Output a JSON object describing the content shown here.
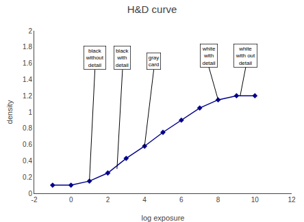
{
  "chart_data": {
    "type": "line",
    "title": "H&D curve",
    "xlabel": "log exposure",
    "ylabel": "density",
    "x": [
      -1,
      0,
      1,
      2,
      3,
      4,
      5,
      6,
      7,
      8,
      9,
      10
    ],
    "values": [
      0.1,
      0.1,
      0.15,
      0.25,
      0.43,
      0.58,
      0.75,
      0.9,
      1.05,
      1.15,
      1.2,
      1.2
    ],
    "color": "#00008B",
    "marker": "diamond",
    "xlim": [
      -2,
      12
    ],
    "ylim": [
      0,
      2
    ],
    "xticks": [
      -2,
      0,
      2,
      4,
      6,
      8,
      10,
      12
    ],
    "yticks": [
      0,
      0.2,
      0.4,
      0.6,
      0.8,
      1,
      1.2,
      1.4,
      1.6,
      1.8,
      2
    ],
    "grid": false,
    "annotations": [
      {
        "text": "black\nwithout\ndetail",
        "x": 1,
        "y": 0.15,
        "text_x": 1.3,
        "text_y": 1.52
      },
      {
        "text": "black\nwith\ndetail",
        "x": 2.5,
        "y": 0.3,
        "text_x": 2.8,
        "text_y": 1.52
      },
      {
        "text": "gray\ncard",
        "x": 4,
        "y": 0.58,
        "text_x": 4.5,
        "text_y": 1.52
      },
      {
        "text": "white\nwith\ndetail",
        "x": 8,
        "y": 1.15,
        "text_x": 7.5,
        "text_y": 1.55
      },
      {
        "text": "white\nwith out\ndetail",
        "x": 9.2,
        "y": 1.2,
        "text_x": 9.5,
        "text_y": 1.55
      }
    ]
  }
}
